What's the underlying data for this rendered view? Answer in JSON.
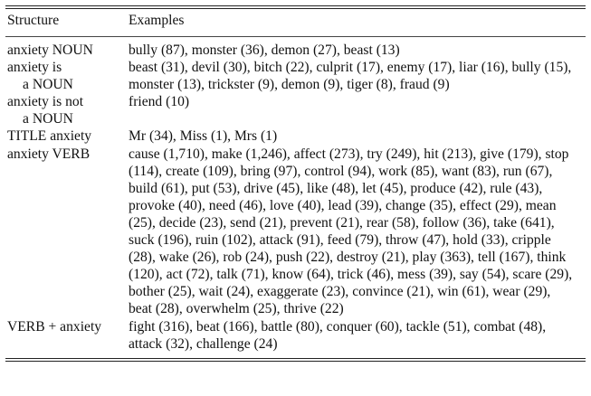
{
  "header": {
    "structure": "Structure",
    "examples": "Examples"
  },
  "rows": [
    {
      "structure": [
        "anxiety NOUN"
      ],
      "examples": [
        "bully (87), monster (36), demon (27), beast (13)"
      ]
    },
    {
      "structure": [
        "anxiety is",
        "a NOUN"
      ],
      "examples": [
        "beast (31), devil (30), bitch (22), culprit (17), enemy (17), liar (16), bully (15),",
        "monster (13), trickster (9), demon (9), tiger (8), fraud (9)"
      ]
    },
    {
      "structure": [
        "anxiety is not",
        "a NOUN"
      ],
      "examples": [
        "friend (10)"
      ]
    },
    {
      "structure": [
        "TITLE anxiety"
      ],
      "examples": [
        "Mr (34), Miss (1), Mrs (1)"
      ]
    },
    {
      "structure": [
        "anxiety VERB"
      ],
      "examples": [
        "cause (1,710), make (1,246), affect (273), try (249), hit (213), give (179), stop",
        "(114), create (109), bring (97), control (94), work (85), want (83), run (67),",
        "build (61), put (53), drive (45), like (48), let (45), produce (42), rule (43),",
        "provoke (40), need (46), love (40), lead (39), change (35), effect (29), mean",
        "(25), decide (23), send (21), prevent (21), rear (58), follow (36), take (641),",
        "suck (196), ruin (102), attack (91), feed (79), throw (47), hold (33), cripple",
        "(28), wake (26), rob (24), push (22), destroy (21), play (363), tell (167), think",
        "(120), act (72), talk (71), know (64), trick (46), mess (39), say (54), scare (29),",
        "bother (25), wait (24), exaggerate (23), convince (21), win (61), wear (29),",
        "beat (28), overwhelm (25), thrive (22)"
      ]
    },
    {
      "structure": [
        "VERB + anxiety"
      ],
      "examples": [
        "fight (316), beat (166), battle (80), conquer (60), tackle (51), combat (48),",
        "attack (32), challenge (24)"
      ]
    }
  ]
}
